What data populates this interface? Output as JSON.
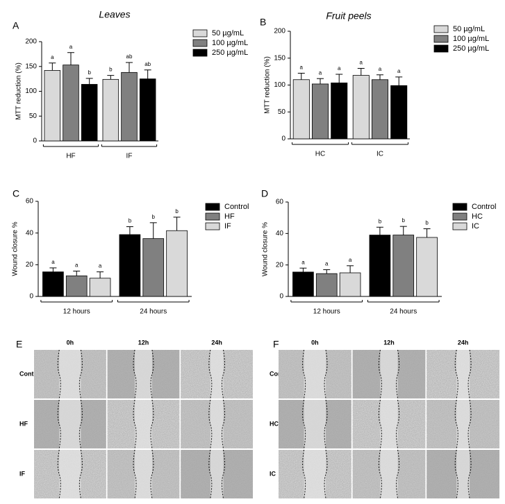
{
  "chart_data": [
    {
      "type": "bar",
      "panel": "A",
      "title": "Leaves",
      "y_label": "MTT reduction (%)",
      "categories": [
        "HF",
        "IF"
      ],
      "ylim": [
        0,
        200
      ],
      "yticks": [
        0,
        50,
        100,
        150,
        200
      ],
      "series": [
        {
          "name": "50 µg/mL",
          "color": "#d9d9d9",
          "values": [
            142,
            124
          ],
          "errors": [
            15,
            8
          ],
          "significance": [
            "a",
            "b"
          ]
        },
        {
          "name": "100 µg/mL",
          "color": "#808080",
          "values": [
            153,
            138
          ],
          "errors": [
            25,
            20
          ],
          "significance": [
            "a",
            "ab"
          ]
        },
        {
          "name": "250 µg/mL",
          "color": "#000000",
          "values": [
            114,
            125
          ],
          "errors": [
            12,
            18
          ],
          "significance": [
            "b",
            "ab"
          ]
        }
      ]
    },
    {
      "type": "bar",
      "panel": "B",
      "title": "Fruit peels",
      "y_label": "MTT reduction (%)",
      "categories": [
        "HC",
        "IC"
      ],
      "ylim": [
        0,
        200
      ],
      "yticks": [
        0,
        50,
        100,
        150,
        200
      ],
      "series": [
        {
          "name": "50 µg/mL",
          "color": "#d9d9d9",
          "values": [
            110,
            118
          ],
          "errors": [
            12,
            13
          ],
          "significance": [
            "a",
            "a"
          ]
        },
        {
          "name": "100 µg/mL",
          "color": "#808080",
          "values": [
            102,
            110
          ],
          "errors": [
            10,
            9
          ],
          "significance": [
            "a",
            "a"
          ]
        },
        {
          "name": "250 µg/mL",
          "color": "#000000",
          "values": [
            104,
            99
          ],
          "errors": [
            16,
            16
          ],
          "significance": [
            "a",
            "a"
          ]
        }
      ]
    },
    {
      "type": "bar",
      "panel": "C",
      "y_label": "Wound closure %",
      "categories": [
        "12 hours",
        "24 hours"
      ],
      "ylim": [
        0,
        60
      ],
      "yticks": [
        0,
        20,
        40,
        60
      ],
      "series": [
        {
          "name": "Control",
          "color": "#000000",
          "values": [
            15.5,
            39
          ],
          "errors": [
            2.5,
            5
          ],
          "significance": [
            "a",
            "b"
          ]
        },
        {
          "name": "HF",
          "color": "#808080",
          "values": [
            13,
            36.5
          ],
          "errors": [
            3,
            10
          ],
          "significance": [
            "a",
            "b"
          ]
        },
        {
          "name": "IF",
          "color": "#d9d9d9",
          "values": [
            11.5,
            41.5
          ],
          "errors": [
            4,
            8.5
          ],
          "significance": [
            "a",
            "b"
          ]
        }
      ]
    },
    {
      "type": "bar",
      "panel": "D",
      "y_label": "Wound closure %",
      "categories": [
        "12 hours",
        "24 hours"
      ],
      "ylim": [
        0,
        60
      ],
      "yticks": [
        0,
        20,
        40,
        60
      ],
      "series": [
        {
          "name": "Control",
          "color": "#000000",
          "values": [
            15.5,
            39
          ],
          "errors": [
            2.5,
            5
          ],
          "significance": [
            "a",
            "b"
          ]
        },
        {
          "name": "HC",
          "color": "#808080",
          "values": [
            14.5,
            39
          ],
          "errors": [
            2.5,
            5.5
          ],
          "significance": [
            "a",
            "b"
          ]
        },
        {
          "name": "IC",
          "color": "#d9d9d9",
          "values": [
            15,
            37.5
          ],
          "errors": [
            4.5,
            5.5
          ],
          "significance": [
            "a",
            "b"
          ]
        }
      ]
    }
  ],
  "micrographs": [
    {
      "panel": "E",
      "columns": [
        "0h",
        "12h",
        "24h"
      ],
      "rows": [
        "Control",
        "HF",
        "IF"
      ]
    },
    {
      "panel": "F",
      "columns": [
        "0h",
        "12h",
        "24h"
      ],
      "rows": [
        "Control",
        "HC",
        "IC"
      ]
    }
  ]
}
